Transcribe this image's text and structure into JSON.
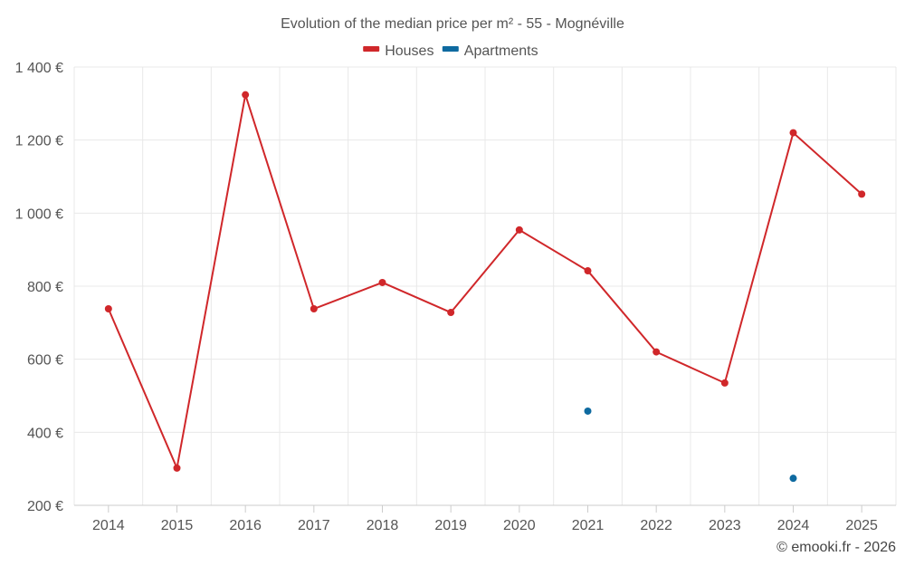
{
  "chart_data": {
    "type": "line",
    "title": "Evolution of the median price per m² - 55 - Mognéville",
    "categories": [
      "2014",
      "2015",
      "2016",
      "2017",
      "2018",
      "2019",
      "2020",
      "2021",
      "2022",
      "2023",
      "2024",
      "2025"
    ],
    "series": [
      {
        "name": "Houses",
        "color": "#d0272a",
        "values": [
          738,
          302,
          1324,
          738,
          810,
          728,
          954,
          842,
          620,
          535,
          1220,
          1052
        ]
      },
      {
        "name": "Apartments",
        "color": "#0e6aa0",
        "values": [
          null,
          null,
          null,
          null,
          null,
          null,
          null,
          458,
          null,
          null,
          274,
          null
        ]
      }
    ],
    "y_ticks": [
      200,
      400,
      600,
      800,
      1000,
      1200,
      1400
    ],
    "y_tick_labels": [
      "200 €",
      "400 €",
      "600 €",
      "800 €",
      "1 000 €",
      "1 200 €",
      "1 400 €"
    ],
    "ylim": [
      200,
      1400
    ],
    "xlabel": "",
    "ylabel": "",
    "legend_position": "top-center",
    "grid": true
  },
  "credit": "© emooki.fr - 2026"
}
